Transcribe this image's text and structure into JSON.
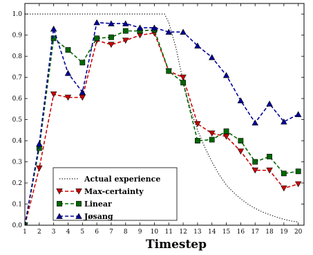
{
  "chart_data": {
    "type": "line",
    "title": "",
    "xlabel": "Timestep",
    "ylabel": "",
    "xlim": [
      1,
      20.4
    ],
    "ylim": [
      0,
      1.05
    ],
    "xticks": [
      "1",
      "2",
      "3",
      "4",
      "5",
      "6",
      "7",
      "8",
      "9",
      "10",
      "11",
      "12",
      "13",
      "14",
      "15",
      "16",
      "17",
      "18",
      "19",
      "20"
    ],
    "yticks": [
      "0.0",
      "0.1",
      "0.2",
      "0.3",
      "0.4",
      "0.5",
      "0.6",
      "0.7",
      "0.8",
      "0.9",
      "1.0"
    ],
    "grid": false,
    "legend_position": "bottom-left",
    "series": [
      {
        "name": "Actual experience",
        "style": "dotted",
        "color": "#000000",
        "marker": "none",
        "x": [
          1,
          2,
          3,
          4,
          5,
          6,
          7,
          8,
          9,
          10,
          10.7,
          11,
          11.5,
          12,
          12.5,
          13,
          13.5,
          14,
          14.5,
          15,
          15.5,
          16,
          16.5,
          17,
          17.5,
          18,
          18.5,
          19,
          19.5,
          20
        ],
        "y": [
          1.0,
          1.0,
          1.0,
          1.0,
          1.0,
          1.0,
          1.0,
          1.0,
          1.0,
          1.0,
          1.0,
          0.96,
          0.84,
          0.68,
          0.55,
          0.45,
          0.37,
          0.3,
          0.24,
          0.19,
          0.155,
          0.125,
          0.1,
          0.08,
          0.063,
          0.05,
          0.038,
          0.028,
          0.02,
          0.015
        ]
      },
      {
        "name": "Max-certainty",
        "style": "dashed",
        "color": "#cc0000",
        "marker": "triangle-down",
        "x": [
          1,
          2,
          3,
          4,
          5,
          6,
          7,
          8,
          9,
          10,
          11,
          12,
          13,
          14,
          15,
          16,
          17,
          18,
          19,
          20
        ],
        "y": [
          0.0,
          0.27,
          0.62,
          0.605,
          0.605,
          0.875,
          0.855,
          0.875,
          0.9,
          0.91,
          0.73,
          0.7,
          0.48,
          0.435,
          0.42,
          0.35,
          0.26,
          0.26,
          0.175,
          0.195
        ]
      },
      {
        "name": "Linear",
        "style": "dashed",
        "color": "#006600",
        "marker": "square",
        "x": [
          1,
          2,
          3,
          4,
          5,
          6,
          7,
          8,
          9,
          10,
          11,
          12,
          13,
          14,
          15,
          16,
          17,
          18,
          19,
          20
        ],
        "y": [
          0.0,
          0.365,
          0.885,
          0.83,
          0.77,
          0.885,
          0.89,
          0.92,
          0.92,
          0.925,
          0.73,
          0.675,
          0.4,
          0.405,
          0.445,
          0.4,
          0.3,
          0.325,
          0.245,
          0.255
        ]
      },
      {
        "name": "Jøsang",
        "style": "dashed",
        "color": "#000099",
        "marker": "triangle-up",
        "x": [
          1,
          2,
          3,
          4,
          5,
          6,
          7,
          8,
          9,
          10,
          11,
          12,
          13,
          14,
          15,
          16,
          17,
          18,
          19,
          20
        ],
        "y": [
          0.0,
          0.385,
          0.93,
          0.72,
          0.63,
          0.96,
          0.955,
          0.955,
          0.935,
          0.935,
          0.915,
          0.915,
          0.85,
          0.795,
          0.71,
          0.59,
          0.485,
          0.575,
          0.49,
          0.525
        ]
      }
    ]
  }
}
